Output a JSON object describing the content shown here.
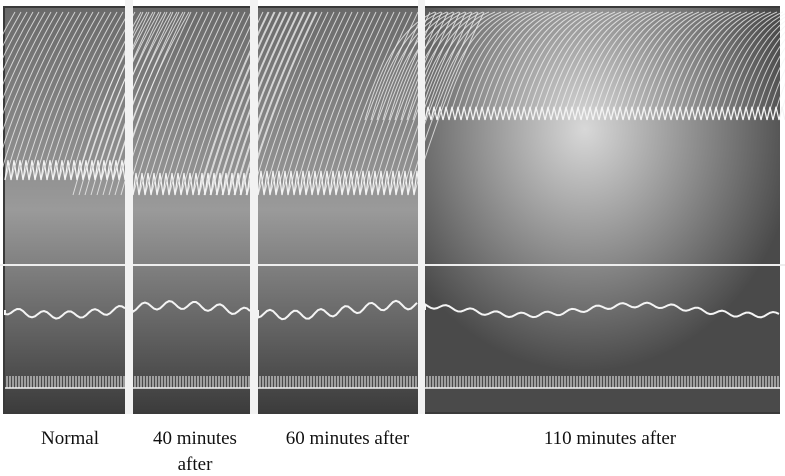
{
  "captions": [
    "Normal",
    "40 minutes after",
    "60 minutes after",
    "110 minutes after"
  ]
}
